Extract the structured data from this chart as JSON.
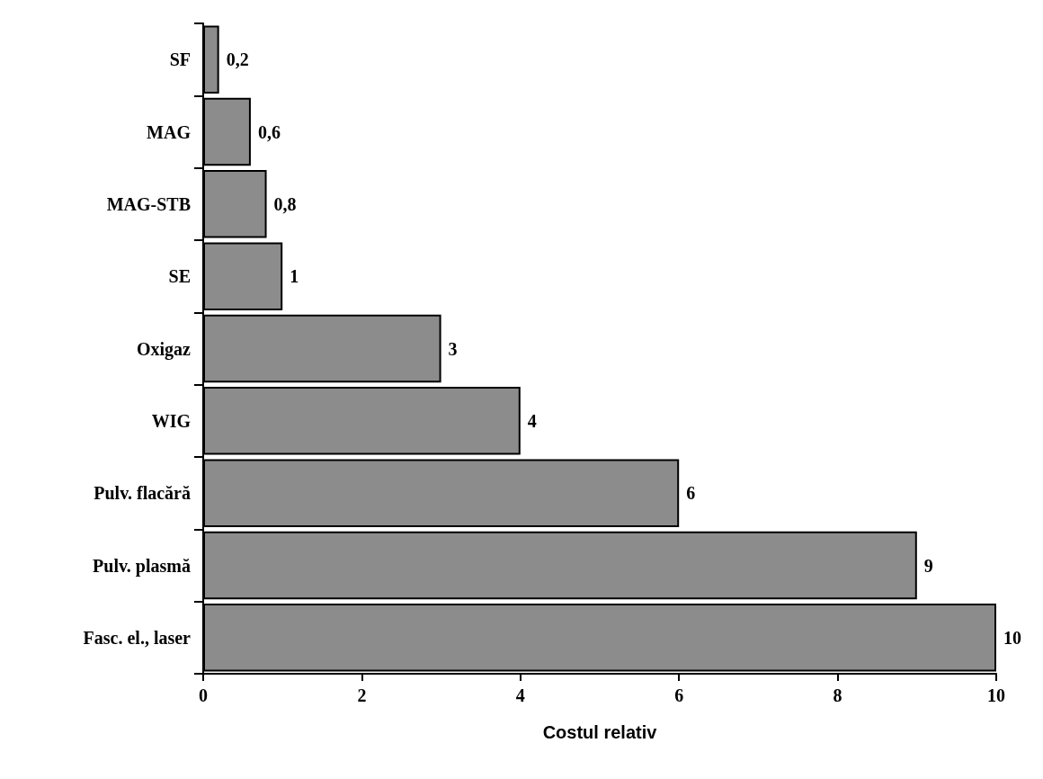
{
  "chart_data": {
    "type": "bar",
    "orientation": "horizontal",
    "xlabel": "Costul relativ",
    "categories": [
      "SF",
      "MAG",
      "MAG-STB",
      "SE",
      "Oxigaz",
      "WIG",
      "Pulv. flacără",
      "Pulv. plasmă",
      "Fasc. el., laser"
    ],
    "values": [
      0.2,
      0.6,
      0.8,
      1,
      3,
      4,
      6,
      9,
      10
    ],
    "value_labels": [
      "0,2",
      "0,6",
      "0,8",
      "1",
      "3",
      "4",
      "6",
      "9",
      "10"
    ],
    "color": "#8c8c8c",
    "xlim": [
      0,
      10
    ],
    "xticks": [
      0,
      2,
      4,
      6,
      8,
      10
    ],
    "grid": false
  }
}
